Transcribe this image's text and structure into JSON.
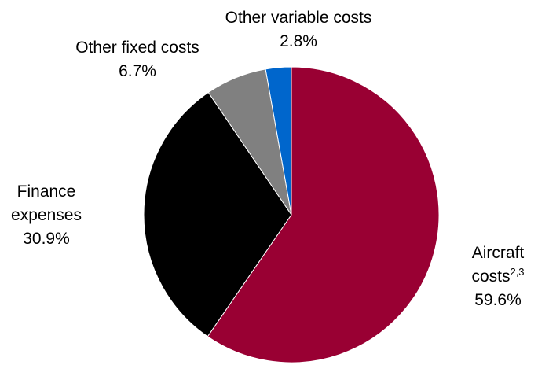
{
  "chart_data": {
    "type": "pie",
    "slices": [
      {
        "label_lines": [
          "Aircraft",
          "costs"
        ],
        "superscript": "2,3",
        "value": 59.6,
        "value_text": "59.6%",
        "color": "#990033"
      },
      {
        "label_lines": [
          "Finance",
          "expenses"
        ],
        "superscript": "",
        "value": 30.9,
        "value_text": "30.9%",
        "color": "#000000"
      },
      {
        "label_lines": [
          "Other fixed costs"
        ],
        "superscript": "",
        "value": 6.7,
        "value_text": "6.7%",
        "color": "#808080"
      },
      {
        "label_lines": [
          "Other variable costs"
        ],
        "superscript": "",
        "value": 2.8,
        "value_text": "2.8%",
        "color": "#0066cc"
      }
    ],
    "start_angle": "12 o'clock",
    "direction": "clockwise",
    "legend": "none"
  }
}
